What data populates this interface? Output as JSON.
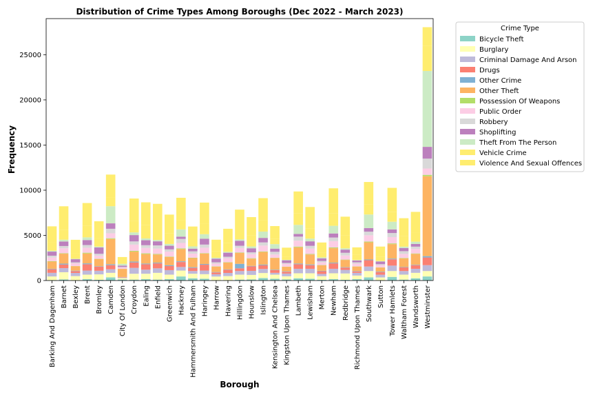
{
  "chart_data": {
    "type": "bar",
    "stacked": true,
    "title": "Distribution of Crime Types Among Boroughs (Dec 2022 - March 2023)",
    "xlabel": "Borough",
    "ylabel": "Frequency",
    "ylim": [
      0,
      29000
    ],
    "yticks": [
      0,
      5000,
      10000,
      15000,
      20000,
      25000
    ],
    "grid": false,
    "legend_title": "Crime Type",
    "legend_position": "outside-right",
    "categories": [
      "Barking And Dagenham",
      "Barnet",
      "Bexley",
      "Brent",
      "Bromley",
      "Camden",
      "City Of London",
      "Croydon",
      "Ealing",
      "Enfield",
      "Greenwich",
      "Hackney",
      "Hammersmith And Fulham",
      "Haringey",
      "Harrow",
      "Havering",
      "Hillingdon",
      "Hounslow",
      "Islington",
      "Kensington And Chelsea",
      "Kingston Upon Thames",
      "Lambeth",
      "Lewisham",
      "Merton",
      "Newham",
      "Redbridge",
      "Richmond Upon Thames",
      "Southwark",
      "Sutton",
      "Tower Hamlets",
      "Waltham Forest",
      "Wandsworth",
      "Westminster"
    ],
    "series": [
      {
        "name": "Bicycle Theft",
        "color": "#8dd3c7",
        "values": [
          50,
          120,
          40,
          150,
          80,
          350,
          120,
          100,
          150,
          100,
          150,
          450,
          250,
          200,
          40,
          40,
          100,
          120,
          280,
          200,
          120,
          250,
          200,
          80,
          150,
          80,
          150,
          350,
          40,
          400,
          100,
          250,
          450
        ]
      },
      {
        "name": "Burglary",
        "color": "#ffffb3",
        "values": [
          400,
          800,
          450,
          500,
          600,
          500,
          150,
          650,
          600,
          750,
          500,
          650,
          500,
          500,
          400,
          450,
          550,
          500,
          550,
          450,
          350,
          550,
          600,
          400,
          650,
          700,
          400,
          700,
          300,
          650,
          550,
          600,
          600
        ]
      },
      {
        "name": "Criminal Damage And Arson",
        "color": "#bebada",
        "values": [
          400,
          450,
          350,
          450,
          400,
          400,
          50,
          650,
          450,
          500,
          500,
          400,
          300,
          400,
          250,
          350,
          400,
          450,
          450,
          200,
          300,
          500,
          500,
          250,
          500,
          400,
          300,
          500,
          300,
          600,
          400,
          450,
          650
        ]
      },
      {
        "name": "Drugs",
        "color": "#fb8072",
        "values": [
          400,
          400,
          200,
          700,
          450,
          450,
          50,
          600,
          600,
          550,
          450,
          550,
          350,
          650,
          200,
          350,
          300,
          500,
          400,
          300,
          200,
          500,
          400,
          300,
          600,
          250,
          150,
          700,
          300,
          700,
          400,
          400,
          850
        ]
      },
      {
        "name": "Other Crime",
        "color": "#80b1d3",
        "values": [
          50,
          100,
          50,
          100,
          50,
          100,
          20,
          100,
          80,
          80,
          100,
          80,
          80,
          80,
          50,
          50,
          500,
          50,
          80,
          50,
          50,
          80,
          80,
          50,
          80,
          50,
          50,
          80,
          50,
          80,
          50,
          50,
          150
        ]
      },
      {
        "name": "Other Theft",
        "color": "#fdb462",
        "values": [
          800,
          1100,
          500,
          1100,
          800,
          2800,
          900,
          1100,
          1050,
          900,
          900,
          1350,
          1000,
          1150,
          600,
          750,
          1200,
          800,
          1400,
          1300,
          500,
          1800,
          1100,
          600,
          1600,
          800,
          500,
          1900,
          450,
          1600,
          950,
          1200,
          8850
        ]
      },
      {
        "name": "Possession Of Weapons",
        "color": "#b3de69",
        "values": [
          50,
          50,
          20,
          80,
          30,
          80,
          10,
          80,
          80,
          60,
          50,
          80,
          50,
          50,
          30,
          40,
          50,
          50,
          60,
          30,
          20,
          80,
          60,
          30,
          80,
          40,
          20,
          80,
          20,
          80,
          50,
          50,
          150
        ]
      },
      {
        "name": "Public Order",
        "color": "#fccde5",
        "values": [
          400,
          550,
          300,
          550,
          350,
          550,
          150,
          700,
          600,
          600,
          550,
          600,
          450,
          600,
          300,
          450,
          500,
          450,
          650,
          350,
          300,
          650,
          600,
          300,
          700,
          450,
          300,
          700,
          250,
          700,
          450,
          500,
          700
        ]
      },
      {
        "name": "Robbery",
        "color": "#d9d9d9",
        "values": [
          200,
          250,
          100,
          300,
          200,
          500,
          50,
          350,
          300,
          350,
          250,
          450,
          250,
          350,
          150,
          150,
          250,
          200,
          350,
          300,
          100,
          450,
          300,
          150,
          400,
          300,
          150,
          400,
          100,
          450,
          300,
          250,
          1100
        ]
      },
      {
        "name": "Shoplifting",
        "color": "#bc80bd",
        "values": [
          450,
          500,
          350,
          550,
          700,
          600,
          150,
          700,
          550,
          450,
          400,
          250,
          300,
          650,
          400,
          450,
          550,
          450,
          500,
          350,
          300,
          300,
          500,
          300,
          450,
          350,
          200,
          400,
          300,
          400,
          350,
          300,
          1300
        ]
      },
      {
        "name": "Theft From The Person",
        "color": "#ccebc5",
        "values": [
          100,
          200,
          50,
          300,
          100,
          1900,
          200,
          300,
          200,
          150,
          200,
          800,
          250,
          500,
          100,
          100,
          150,
          200,
          700,
          500,
          50,
          1000,
          300,
          100,
          850,
          150,
          50,
          1500,
          50,
          850,
          150,
          250,
          8400
        ]
      },
      {
        "name": "Vehicle Crime",
        "color": "#ffed6f",
        "values": [
          900,
          1100,
          600,
          1300,
          900,
          1000,
          250,
          1300,
          1500,
          1500,
          1150,
          1050,
          800,
          1200,
          700,
          1000,
          1250,
          1200,
          1250,
          600,
          350,
          1300,
          1100,
          500,
          1400,
          1400,
          600,
          1100,
          500,
          1100,
          1200,
          1000,
          2800
        ]
      },
      {
        "name": "Violence And Sexual Offences",
        "color": "#ffed6f",
        "values": [
          1800,
          2600,
          1500,
          2500,
          1900,
          2500,
          500,
          2450,
          2500,
          2500,
          2100,
          2450,
          1400,
          2300,
          1300,
          1550,
          2050,
          2050,
          2450,
          1400,
          1000,
          2400,
          2400,
          1150,
          2750,
          2100,
          800,
          2500,
          1100,
          2650,
          1950,
          2300,
          2050
        ]
      }
    ]
  }
}
